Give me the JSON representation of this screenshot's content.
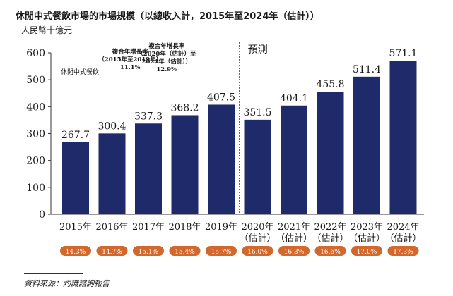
{
  "title": "休閒中式餐飲市場的市場規模（以總收入計，2015年至2024年（估計））",
  "unit": "人民幣十億元",
  "source": "資料來源：灼識諮詢報告",
  "colors": {
    "bar": "#1f2a6b",
    "badge": "#d2682c",
    "axis": "#333333"
  },
  "chart_data": {
    "type": "bar",
    "categories": [
      [
        "2015年"
      ],
      [
        "2016年"
      ],
      [
        "2017年"
      ],
      [
        "2018年"
      ],
      [
        "2019年"
      ],
      [
        "2020年",
        "（估計）"
      ],
      [
        "2021年",
        "（估計）"
      ],
      [
        "2022年",
        "（估計）"
      ],
      [
        "2023年",
        "（估計）"
      ],
      [
        "2024年",
        "（估計）"
      ]
    ],
    "series": [
      {
        "name": "休閒中式餐飲",
        "values": [
          267.7,
          300.4,
          337.3,
          368.2,
          407.5,
          351.5,
          404.1,
          455.8,
          511.4,
          571.1
        ]
      }
    ],
    "ylim": [
      0,
      600
    ],
    "yticks": [
      0,
      100,
      200,
      300,
      400,
      500,
      600
    ],
    "forecast_label": "預測",
    "forecast_start_index": 5,
    "growth_badges": [
      "14.3%",
      "14.7%",
      "15.1%",
      "15.4%",
      "15.7%",
      "16.0%",
      "16.3%",
      "16.6%",
      "17.0%",
      "17.3%"
    ],
    "annotations": [
      {
        "lines": [
          "複合年增長率",
          "（2015年至2019年）",
          "11.1%"
        ],
        "anchor_index": 1.5
      },
      {
        "lines": [
          "複合年增長率",
          "（2020年（估計）至",
          "2024年（估計））",
          "12.9%"
        ],
        "anchor_index": 2.5
      }
    ]
  }
}
